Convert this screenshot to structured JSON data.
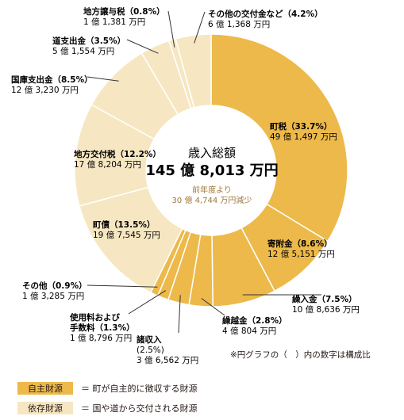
{
  "chart_data": {
    "type": "pie",
    "center": {
      "title": "歳入総額",
      "total": "145 億 8,013 万円",
      "note_line1": "前年度より",
      "note_line2": "30 億 4,744 万円減少"
    },
    "slices": [
      {
        "name": "町税",
        "pct": 33.7,
        "pct_label": "（33.7%）",
        "amount": "49 億 1,497 万円",
        "group": "own"
      },
      {
        "name": "寄附金",
        "pct": 8.6,
        "pct_label": "（8.6%）",
        "amount": "12 億 5,151 万円",
        "group": "own"
      },
      {
        "name": "繰入金",
        "pct": 7.5,
        "pct_label": "（7.5%）",
        "amount": "10 億 8,636 万円",
        "group": "own"
      },
      {
        "name": "繰越金",
        "pct": 2.8,
        "pct_label": "（2.8%）",
        "amount": "4 億 804 万円",
        "group": "own"
      },
      {
        "name": "諸収入",
        "pct": 2.5,
        "pct_label": "(2.5%)",
        "amount": "3 億 6,562 万円",
        "group": "own"
      },
      {
        "name": "使用料および手数料",
        "name_line1": "使用料および",
        "name_line2": "手数料",
        "pct": 1.3,
        "pct_label": "（1.3%）",
        "amount": "1 億 8,796 万円",
        "group": "own"
      },
      {
        "name": "その他",
        "pct": 0.9,
        "pct_label": "（0.9%）",
        "amount": "1 億 3,285 万円",
        "group": "own"
      },
      {
        "name": "町債",
        "pct": 13.5,
        "pct_label": "（13.5%）",
        "amount": "19 億 7,545 万円",
        "group": "dep"
      },
      {
        "name": "地方交付税",
        "pct": 12.2,
        "pct_label": "（12.2%）",
        "amount": "17 億 8,204 万円",
        "group": "dep"
      },
      {
        "name": "国庫支出金",
        "pct": 8.5,
        "pct_label": "（8.5%）",
        "amount": "12 億 3,230 万円",
        "group": "dep"
      },
      {
        "name": "道支出金",
        "pct": 3.5,
        "pct_label": "（3.5%）",
        "amount": "5 億 1,554 万円",
        "group": "dep"
      },
      {
        "name": "地方譲与税",
        "pct": 0.8,
        "pct_label": "（0.8%）",
        "amount": "1 億 1,381 万円",
        "group": "dep"
      },
      {
        "name": "その他の交付金など",
        "pct": 4.2,
        "pct_label": "（4.2%）",
        "amount": "6 億 1,368 万円",
        "group": "dep"
      }
    ],
    "colors": {
      "own": "#ecb94a",
      "dep": "#f6e7c2",
      "stroke": "#ffffff",
      "leader": "#333333"
    }
  },
  "note": "※円グラフの（　）内の数字は構成比",
  "legend": [
    {
      "box_label": "自主財源",
      "desc": "＝ 町が自主的に徴収する財源",
      "color": "#ecb94a"
    },
    {
      "box_label": "依存財源",
      "desc": "＝ 国や道から交付される財源",
      "color": "#f6e7c2"
    }
  ]
}
